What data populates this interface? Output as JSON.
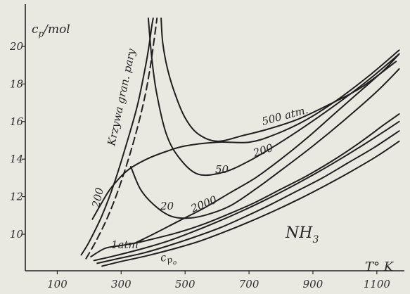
{
  "chart_data": {
    "type": "line",
    "xlim": [
      0,
      1200
    ],
    "ylim": [
      8.0,
      21.5
    ],
    "x_ticks": [
      "100",
      "300",
      "500",
      "700",
      "900",
      "1100"
    ],
    "y_ticks": [
      "10",
      "12",
      "14",
      "16",
      "18",
      "20"
    ],
    "x_tick_values": [
      100,
      300,
      500,
      700,
      900,
      1100
    ],
    "y_tick_values": [
      10,
      12,
      14,
      16,
      18,
      20
    ],
    "xlabel_main": "T° K",
    "ylabel_main": "c",
    "ylabel_sub": "p",
    "ylabel_suffix": "/mol",
    "substance_main": "NH",
    "substance_sub": "3",
    "grid": false,
    "series": [
      {
        "label": "500 atm.",
        "x": [
          425,
          430,
          445,
          470,
          500,
          540,
          600,
          680,
          760,
          850,
          950,
          1050,
          1160
        ],
        "y": [
          21.5,
          20.2,
          18.8,
          17.4,
          16.2,
          15.35,
          14.95,
          15.25,
          15.6,
          16.1,
          16.9,
          17.8,
          19.2
        ]
      },
      {
        "label": "200",
        "x": [
          385,
          395,
          410,
          440,
          480,
          540,
          620,
          700,
          790,
          880,
          980,
          1080,
          1170
        ],
        "y": [
          21.5,
          19.5,
          17.6,
          15.4,
          14.1,
          13.2,
          13.3,
          13.9,
          14.8,
          15.8,
          17.0,
          18.3,
          19.6
        ]
      },
      {
        "label": "50",
        "x": [
          210,
          240,
          270,
          320,
          380,
          440,
          500,
          600,
          700,
          780,
          880,
          980,
          1080,
          1170
        ],
        "y": [
          10.8,
          11.7,
          12.5,
          13.4,
          14.0,
          14.4,
          14.7,
          14.9,
          14.9,
          15.3,
          16.1,
          17.2,
          18.5,
          19.8
        ]
      },
      {
        "label": "20",
        "x": [
          330,
          360,
          400,
          450,
          500,
          560,
          640,
          720,
          800,
          900,
          1000,
          1100,
          1170
        ],
        "y": [
          13.6,
          12.4,
          11.6,
          11.0,
          10.85,
          11.0,
          11.5,
          12.4,
          13.4,
          14.7,
          16.1,
          17.6,
          18.8
        ]
      },
      {
        "label": "2000",
        "x": [
          340,
          400,
          480,
          560,
          640,
          720,
          800,
          880,
          960,
          1040,
          1120,
          1170
        ],
        "y": [
          9.5,
          10.0,
          10.7,
          11.4,
          12.2,
          13.0,
          14.0,
          15.1,
          16.3,
          17.5,
          18.7,
          19.6
        ]
      },
      {
        "label": "1atm",
        "x": [
          205,
          250,
          300,
          350,
          400,
          480,
          560,
          640,
          720,
          800,
          880,
          960,
          1040,
          1120,
          1170
        ],
        "y": [
          8.8,
          9.25,
          9.4,
          9.55,
          9.75,
          10.1,
          10.55,
          11.1,
          11.7,
          12.4,
          13.1,
          13.9,
          14.8,
          15.8,
          16.4
        ]
      },
      {
        "label": "c_p0",
        "x": [
          240,
          300,
          380,
          460,
          540,
          620,
          700,
          780,
          860,
          940,
          1020,
          1100,
          1170
        ],
        "y": [
          8.3,
          8.55,
          8.85,
          9.2,
          9.6,
          10.1,
          10.65,
          11.25,
          11.9,
          12.6,
          13.35,
          14.15,
          14.95
        ]
      },
      {
        "label": "",
        "x": [
          215,
          280,
          360,
          440,
          520,
          600,
          680,
          760,
          840,
          920,
          1000,
          1080,
          1170
        ],
        "y": [
          8.6,
          8.85,
          9.2,
          9.6,
          10.1,
          10.65,
          11.25,
          11.9,
          12.6,
          13.35,
          14.15,
          15.0,
          16.0
        ]
      },
      {
        "label": "",
        "x": [
          225,
          290,
          370,
          450,
          530,
          610,
          690,
          770,
          850,
          930,
          1010,
          1090,
          1170
        ],
        "y": [
          8.45,
          8.7,
          9.0,
          9.4,
          9.85,
          10.35,
          10.95,
          11.6,
          12.3,
          13.0,
          13.8,
          14.6,
          15.5
        ]
      },
      {
        "label": "Krzywa gran. pary",
        "style": "solid",
        "x": [
          175,
          200,
          240,
          280,
          320,
          350,
          370,
          385,
          395,
          400
        ],
        "y": [
          8.9,
          9.6,
          11.0,
          12.8,
          15.0,
          16.8,
          18.4,
          19.8,
          21.0,
          21.5
        ]
      },
      {
        "label": "200",
        "style": "dashed",
        "x": [
          190,
          220,
          260,
          300,
          340,
          370,
          390,
          405,
          412
        ],
        "y": [
          8.7,
          9.6,
          11.0,
          12.8,
          15.0,
          17.0,
          18.8,
          20.6,
          21.5
        ]
      }
    ],
    "curve_labels": [
      "500 atm.",
      "200",
      "50",
      "20",
      "2000",
      "1atm",
      "200",
      "Krzywa gran. pary"
    ],
    "cp0_main": "c",
    "cp0_sub": "p",
    "cp0_subsub": "o"
  }
}
